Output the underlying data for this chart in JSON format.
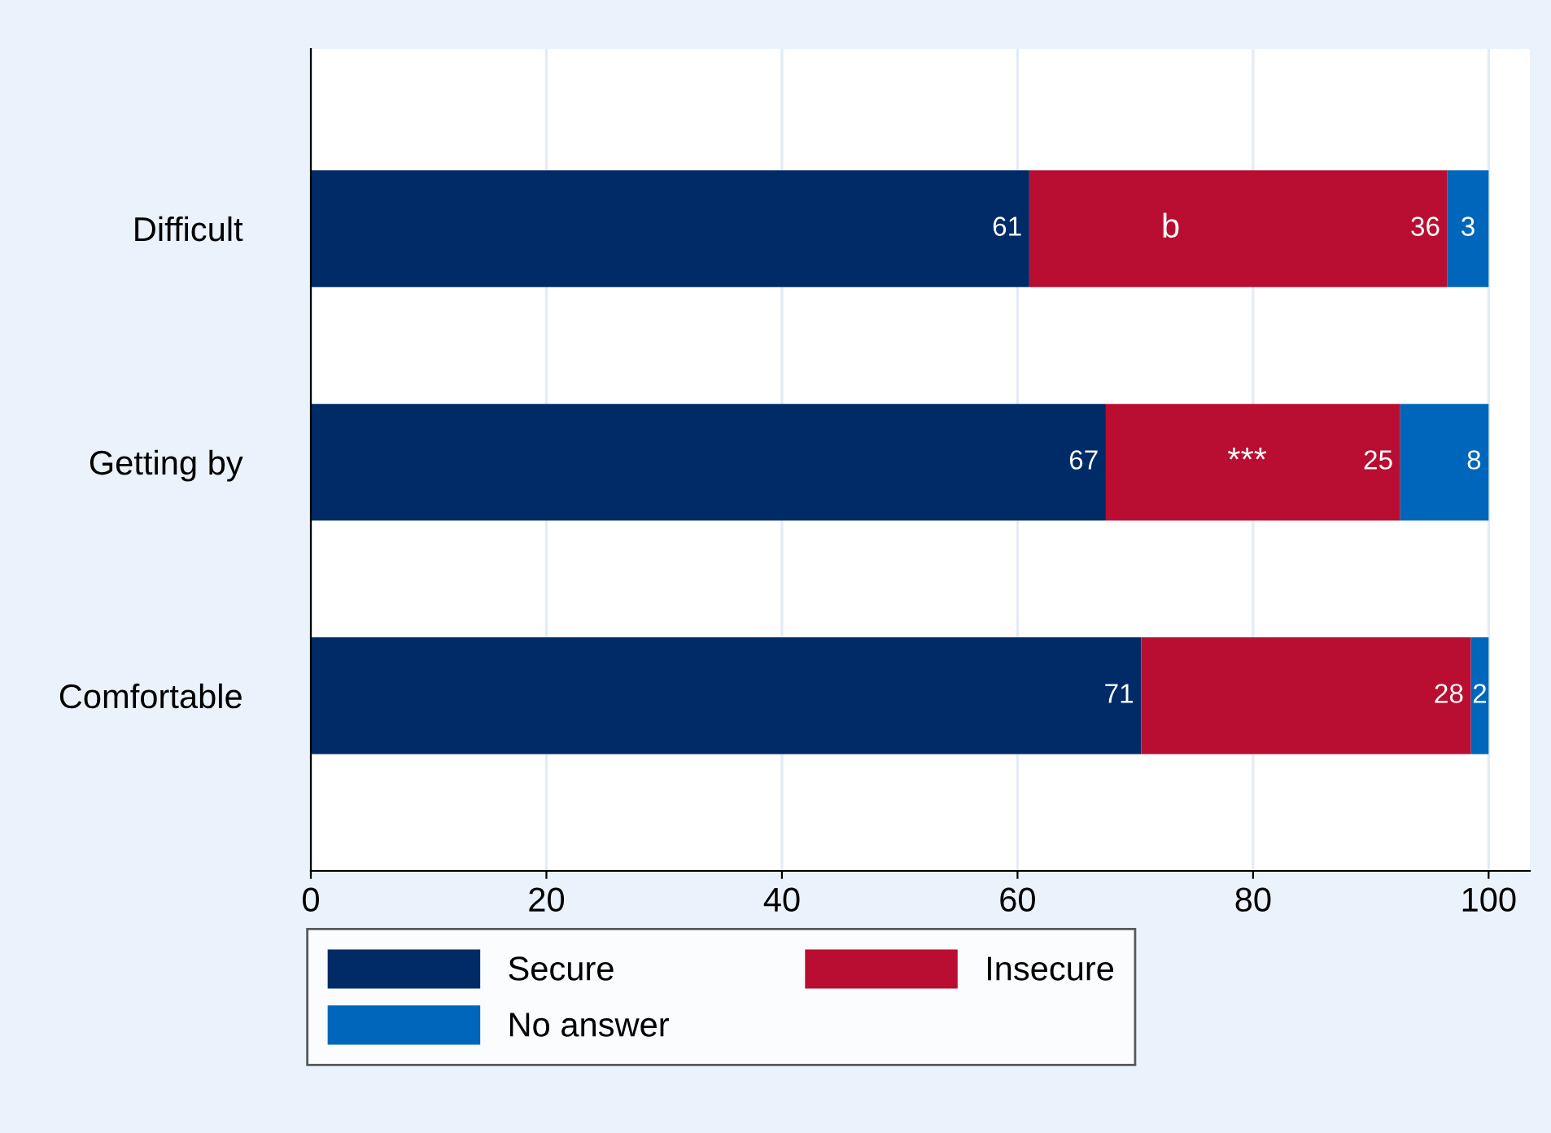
{
  "chart_data": {
    "type": "bar",
    "orientation": "horizontal",
    "stacked": true,
    "categories": [
      "Difficult",
      "Getting by",
      "Comfortable"
    ],
    "series": [
      {
        "name": "Secure",
        "color": "#002b66",
        "values": [
          61,
          67.5,
          70.5
        ],
        "value_labels": [
          "61",
          "67",
          "71"
        ]
      },
      {
        "name": "Insecure",
        "color": "#b90e31",
        "values": [
          35.5,
          25,
          28
        ],
        "value_labels": [
          "36",
          "25",
          "28"
        ]
      },
      {
        "name": "No answer",
        "color": "#0066bb",
        "values": [
          3.5,
          7.5,
          1.5
        ],
        "value_labels": [
          "3",
          "8",
          "2"
        ]
      }
    ],
    "xlim": [
      0,
      103.5
    ],
    "xticks": [
      0,
      20,
      40,
      60,
      80,
      100
    ],
    "grid": "x",
    "legend": "bottom",
    "annotations": [
      "b",
      "***"
    ]
  }
}
